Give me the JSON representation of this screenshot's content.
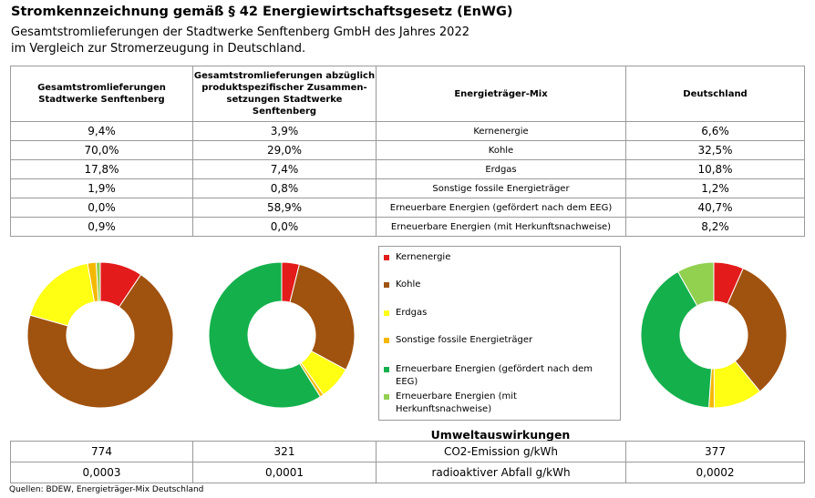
{
  "header": {
    "title": "Stromkennzeichnung gemäß § 42 Energiewirtschaftsgesetz (EnWG)",
    "subtitle_line1": "Gesamtstromlieferungen der Stadtwerke Senftenberg GmbH des Jahres 2022",
    "subtitle_line2": " im Vergleich zur Stromerzeugung in Deutschland."
  },
  "table": {
    "headers": [
      "Gesamtstromlieferungen Stadtwerke Senftenberg",
      "Gesamtstromlieferungen abzüglich produktspezifischer Zusammen-setzungen Stadtwerke Senftenberg",
      "Energieträger-Mix",
      "Deutschland"
    ],
    "rows": [
      {
        "total": "9,4%",
        "adjusted": "3,9%",
        "source": "Kernenergie",
        "germany": "6,6%"
      },
      {
        "total": "70,0%",
        "adjusted": "29,0%",
        "source": "Kohle",
        "germany": "32,5%"
      },
      {
        "total": "17,8%",
        "adjusted": "7,4%",
        "source": "Erdgas",
        "germany": "10,8%"
      },
      {
        "total": "1,9%",
        "adjusted": "0,8%",
        "source": "Sonstige fossile Energieträger",
        "germany": "1,2%"
      },
      {
        "total": "0,0%",
        "adjusted": "58,9%",
        "source": "Erneuerbare Energien (gefördert nach dem EEG)",
        "germany": "40,7%"
      },
      {
        "total": "0,9%",
        "adjusted": "0,0%",
        "source": "Erneuerbare Energien (mit Herkunftsnachweise)",
        "germany": "8,2%"
      }
    ]
  },
  "legend": {
    "items": [
      {
        "label": "Kernenergie",
        "color": "#e31b1b"
      },
      {
        "label": "Kohle",
        "color": "#a0520f"
      },
      {
        "label": "Erdgas",
        "color": "#ffff14"
      },
      {
        "label": "Sonstige fossile Energieträger",
        "color": "#f5b800"
      },
      {
        "label": "Erneuerbare Energien (gefördert nach dem EEG)",
        "color": "#14b04c"
      },
      {
        "label": "Erneuerbare Energien (mit Herkunftsnachweise)",
        "color": "#92d050"
      }
    ]
  },
  "chart_data": [
    {
      "type": "pie",
      "categories": [
        "Kernenergie",
        "Kohle",
        "Erdgas",
        "Sonstige fossile Energieträger",
        "Erneuerbare Energien (gefördert nach dem EEG)",
        "Erneuerbare Energien (mit Herkunftsnachweise)"
      ],
      "values": [
        9.4,
        70.0,
        17.8,
        1.9,
        0.0,
        0.9
      ]
    },
    {
      "type": "pie",
      "categories": [
        "Kernenergie",
        "Kohle",
        "Erdgas",
        "Sonstige fossile Energieträger",
        "Erneuerbare Energien (gefördert nach dem EEG)",
        "Erneuerbare Energien (mit Herkunftsnachweise)"
      ],
      "values": [
        3.9,
        29.0,
        7.4,
        0.8,
        58.9,
        0.0
      ]
    },
    {
      "type": "pie",
      "categories": [
        "Kernenergie",
        "Kohle",
        "Erdgas",
        "Sonstige fossile Energieträger",
        "Erneuerbare Energien (gefördert nach dem EEG)",
        "Erneuerbare Energien (mit Herkunftsnachweise)"
      ],
      "values": [
        6.6,
        32.5,
        10.8,
        1.2,
        40.7,
        8.2
      ]
    }
  ],
  "environment": {
    "title": "Umweltauswirkungen",
    "rows": [
      {
        "total": "774",
        "adjusted": "321",
        "label": "CO2-Emission g/kWh",
        "germany": "377"
      },
      {
        "total": "0,0003",
        "adjusted": "0,0001",
        "label": "radioaktiver Abfall g/kWh",
        "germany": "0,0002"
      }
    ]
  },
  "footer": {
    "sources": "Quellen: BDEW, Energieträger-Mix Deutschland"
  }
}
